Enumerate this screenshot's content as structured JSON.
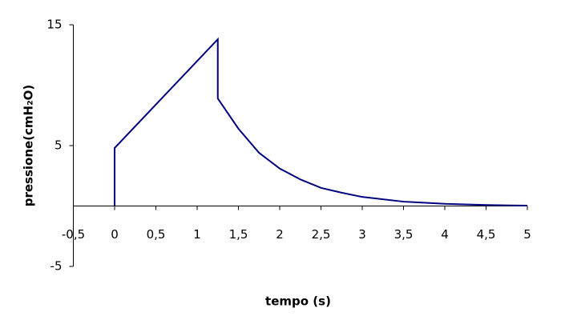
{
  "chart_data": {
    "type": "line",
    "x_label": "tempo (s)",
    "y_label": "pressione(cmH₂O)",
    "series": [
      {
        "color": "#000080",
        "x": [
          0,
          0,
          1.25,
          1.25,
          1.5,
          1.75,
          2,
          2.25,
          2.5,
          2.75,
          3,
          3.5,
          4,
          4.5,
          5
        ],
        "values": [
          0,
          4.8,
          13.8,
          8.9,
          6.4,
          4.4,
          3.1,
          2.2,
          1.5,
          1.1,
          0.75,
          0.36,
          0.18,
          0.08,
          0.03
        ]
      }
    ],
    "xlim": [
      -0.5,
      5
    ],
    "xticks": [
      {
        "value": -0.5,
        "label": "-0,5"
      },
      0,
      {
        "value": 0.5,
        "label": "0,5"
      },
      1,
      {
        "value": 1.5,
        "label": "1,5"
      },
      2,
      {
        "value": 2.5,
        "label": "2,5"
      },
      3,
      {
        "value": 3.5,
        "label": "3,5"
      },
      4,
      {
        "value": 4.5,
        "label": "4,5"
      },
      5
    ],
    "ylim": [
      -5,
      15
    ],
    "yticks": [
      -5,
      5,
      15
    ]
  }
}
